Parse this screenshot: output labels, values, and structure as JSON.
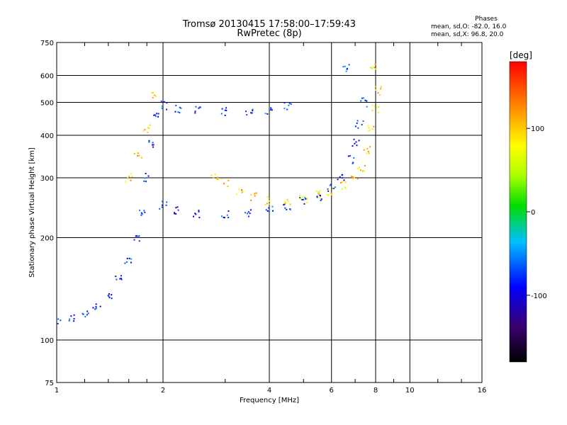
{
  "header": {
    "title_line1": "Tromsø 20130415 17:58:00–17:59:43",
    "title_line2": "RwPretec (8p)"
  },
  "phase_box": {
    "title": "Phases",
    "line1": "mean, sd,O: -82.0, 16.0",
    "line2": "mean, sd,X:  96.8, 20.0"
  },
  "colorbar": {
    "unit_label": "[deg]",
    "range": [
      -180,
      180
    ],
    "ticks": [
      {
        "value": 100,
        "label": "100"
      },
      {
        "value": 0,
        "label": "0"
      },
      {
        "value": -100,
        "label": "-100"
      }
    ]
  },
  "chart_data": {
    "type": "scatter",
    "xlabel": "Frequency [MHz]",
    "ylabel": "Stationary phase Virtual Height [km]",
    "xscale": "log",
    "yscale": "log",
    "xlim": [
      1,
      16
    ],
    "ylim": [
      75,
      750
    ],
    "x_ticks": [
      "1",
      "2",
      "4",
      "6",
      "8",
      "10",
      "16"
    ],
    "y_ticks": [
      "75",
      "100",
      "200",
      "300",
      "400",
      "500",
      "600",
      "750"
    ],
    "grid": true,
    "color_encoding": "phase in degrees",
    "traces": [
      {
        "mode": "O",
        "mean_phase": -82.0,
        "points": [
          [
            1.0,
            113
          ],
          [
            1.1,
            116
          ],
          [
            1.2,
            120
          ],
          [
            1.3,
            126
          ],
          [
            1.4,
            135
          ],
          [
            1.5,
            150
          ],
          [
            1.6,
            170
          ],
          [
            1.7,
            200
          ],
          [
            1.75,
            240
          ],
          [
            1.8,
            300
          ],
          [
            1.85,
            380
          ],
          [
            1.9,
            460
          ],
          [
            2.0,
            490
          ],
          [
            2.2,
            480
          ],
          [
            2.5,
            475
          ],
          [
            3.0,
            470
          ],
          [
            3.5,
            468
          ],
          [
            4.0,
            475
          ],
          [
            4.5,
            490
          ],
          [
            2.0,
            250
          ],
          [
            2.2,
            240
          ],
          [
            2.5,
            236
          ],
          [
            3.0,
            235
          ],
          [
            3.5,
            236
          ],
          [
            4.0,
            240
          ],
          [
            4.5,
            246
          ],
          [
            5.0,
            255
          ],
          [
            5.5,
            265
          ],
          [
            6.0,
            280
          ],
          [
            6.4,
            300
          ],
          [
            6.8,
            340
          ],
          [
            7.0,
            380
          ],
          [
            7.2,
            430
          ],
          [
            7.4,
            500
          ],
          [
            6.6,
            630
          ]
        ]
      },
      {
        "mode": "X",
        "mean_phase": 96.8,
        "points": [
          [
            2.8,
            305
          ],
          [
            3.0,
            290
          ],
          [
            3.3,
            275
          ],
          [
            3.6,
            265
          ],
          [
            4.0,
            258
          ],
          [
            4.5,
            256
          ],
          [
            5.0,
            260
          ],
          [
            5.5,
            268
          ],
          [
            6.0,
            275
          ],
          [
            6.5,
            285
          ],
          [
            7.0,
            300
          ],
          [
            7.3,
            320
          ],
          [
            7.6,
            360
          ],
          [
            7.8,
            420
          ],
          [
            8.0,
            480
          ],
          [
            8.1,
            540
          ],
          [
            7.9,
            630
          ],
          [
            1.6,
            300
          ],
          [
            1.7,
            350
          ],
          [
            1.8,
            420
          ],
          [
            1.9,
            520
          ]
        ]
      }
    ]
  }
}
